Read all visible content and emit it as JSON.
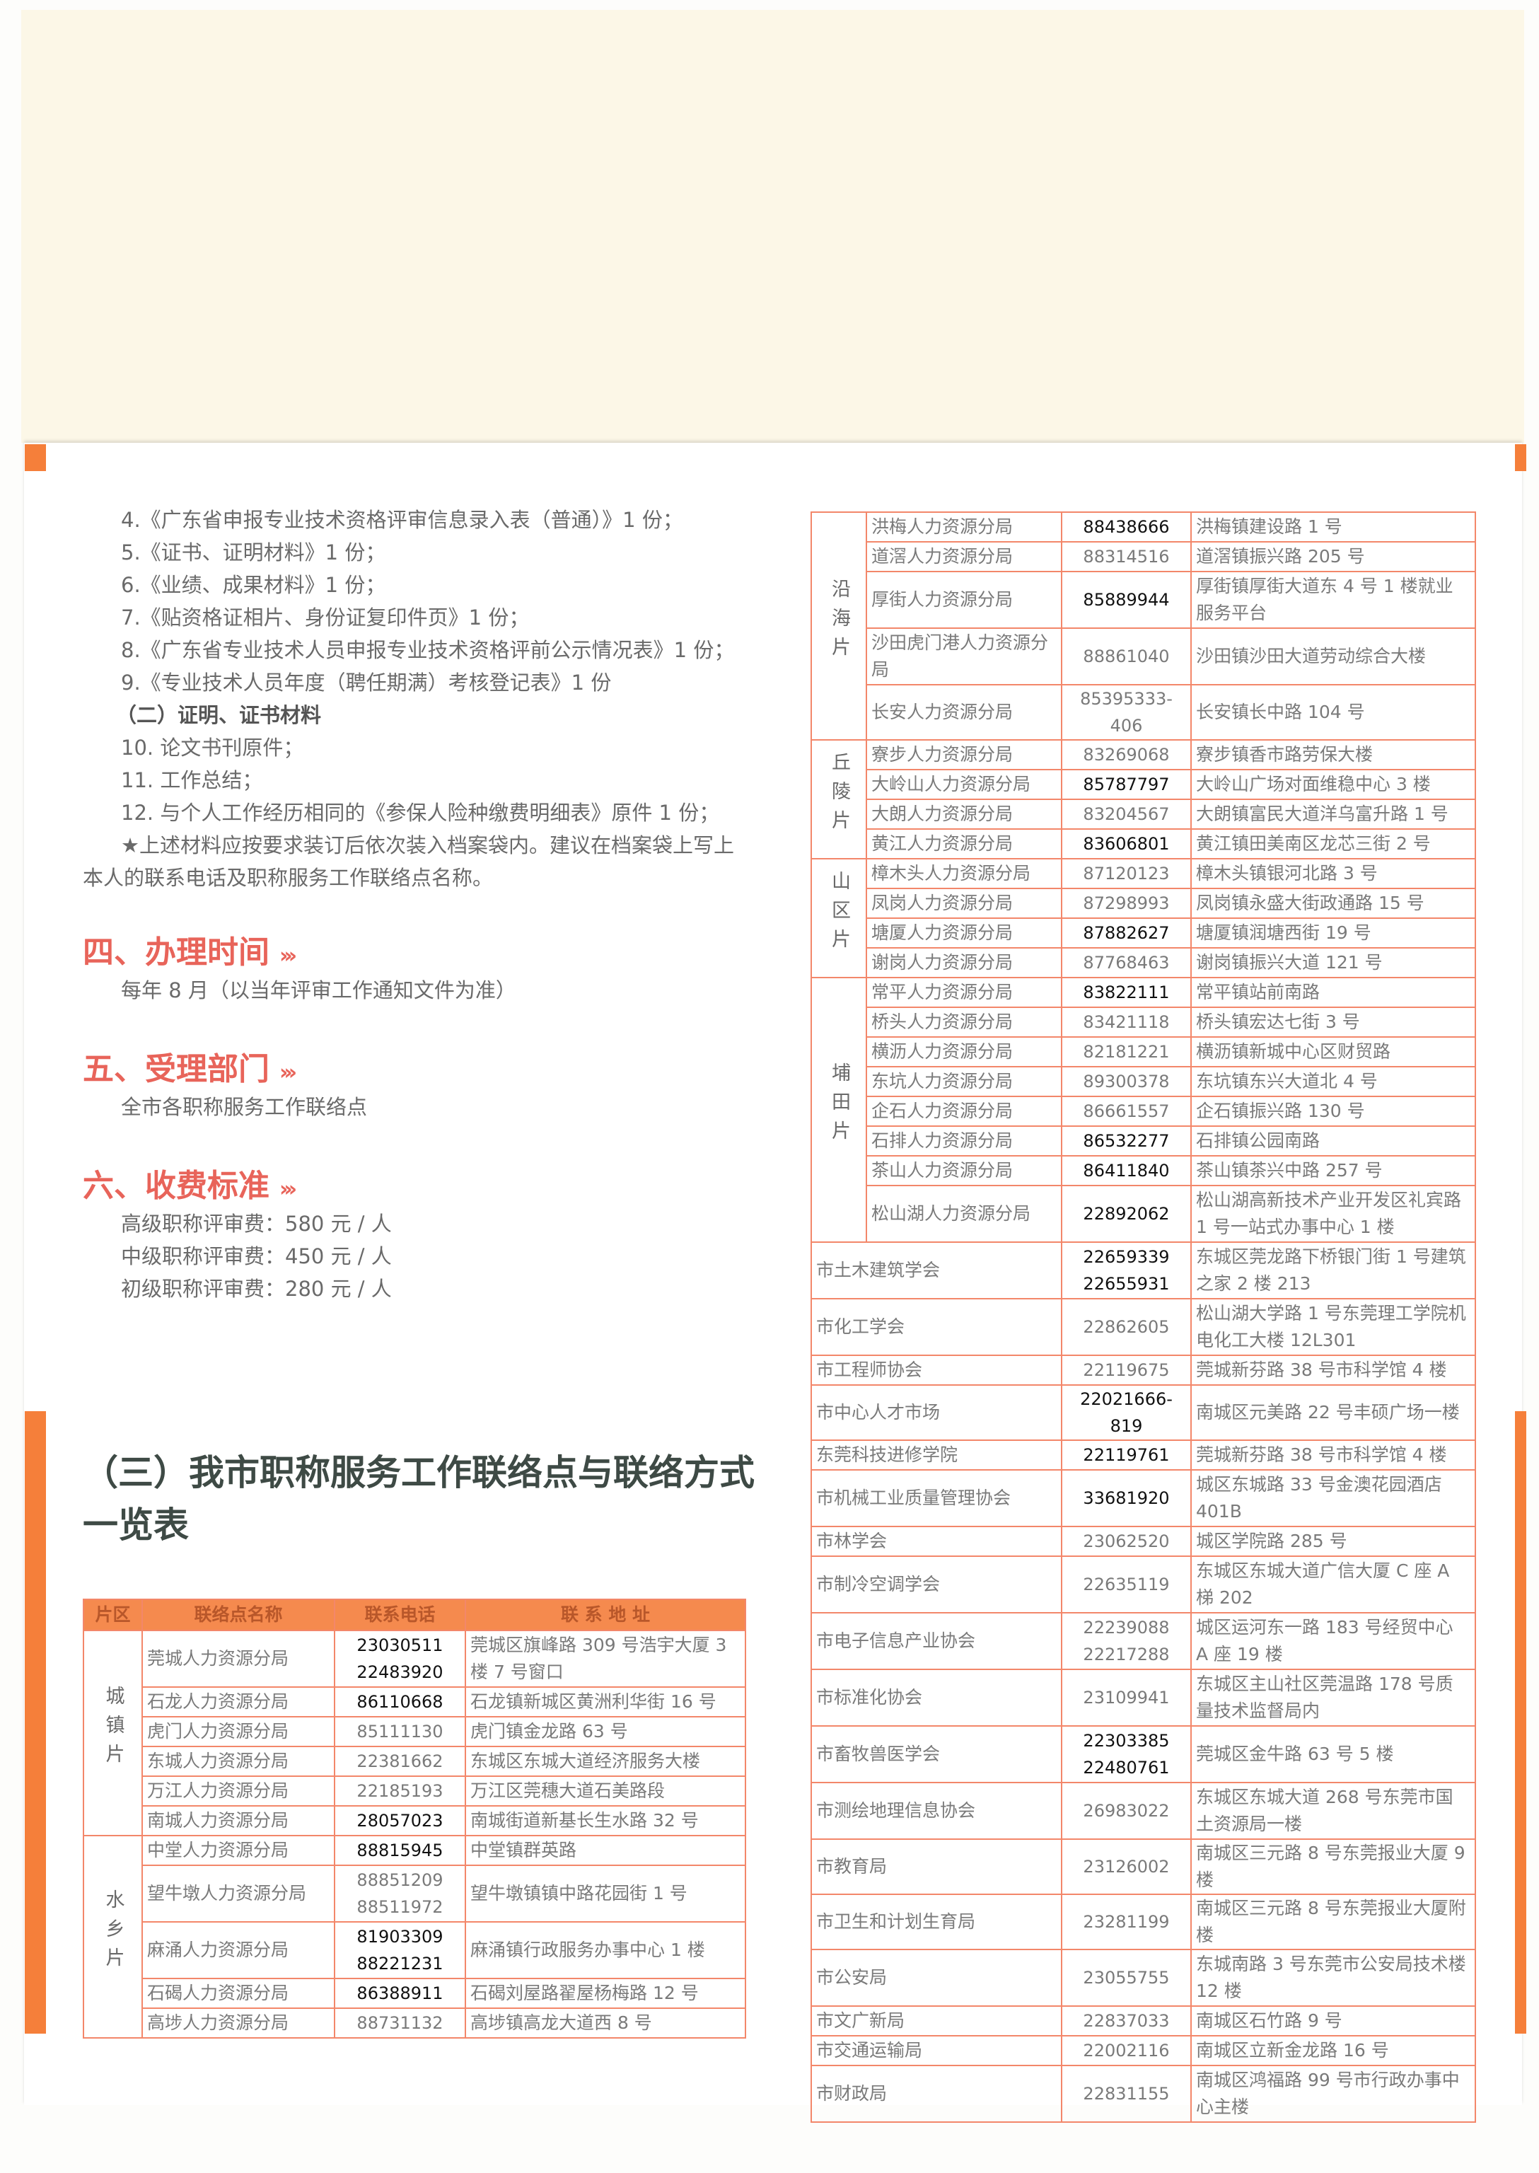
{
  "colors": {
    "accent": "#f57f3a",
    "heading": "#e8645a",
    "title": "#3e4a45",
    "table_border": "#f3876a",
    "table_header": "#f58a4e"
  },
  "materials": [
    "4.《广东省申报专业技术资格评审信息录入表（普通）》1 份；",
    "5.《证书、证明材料》1 份；",
    "6.《业绩、成果材料》1 份；",
    "7.《贴资格证相片、身份证复印件页》1 份；",
    "8.《广东省专业技术人员申报专业技术资格评前公示情况表》1 份；",
    "9.《专业技术人员年度（聘任期满）考核登记表》1 份"
  ],
  "sub_heading": "（二）证明、证书材料",
  "materials2": [
    "10. 论文书刊原件；",
    "11. 工作总结；",
    "12. 与个人工作经历相同的《参保人险种缴费明细表》原件 1 份；"
  ],
  "note_line1": "★上述材料应按要求装订后依次装入档案袋内。建议在档案袋上写上",
  "note_line2": "本人的联系电话及职称服务工作联络点名称。",
  "sections": [
    {
      "title": "四、办理时间",
      "arrows": "›››",
      "lines": [
        "每年 8 月（以当年评审工作通知文件为准）"
      ]
    },
    {
      "title": "五、受理部门",
      "arrows": "›››",
      "lines": [
        "全市各职称服务工作联络点"
      ]
    },
    {
      "title": "六、收费标准",
      "arrows": "›››",
      "lines": [
        "高级职称评审费：580 元 / 人",
        "中级职称评审费：450 元 / 人",
        "初级职称评审费：280 元 / 人"
      ]
    }
  ],
  "table_title": "（三）我市职称服务工作联络点与联络方式一览表",
  "table_headers": [
    "片区",
    "联络点名称",
    "联系电话",
    "联 系 地 址"
  ],
  "left_table": [
    {
      "zone": "城镇片",
      "rows": [
        {
          "name": "莞城人力资源分局",
          "phones": [
            "23030511",
            "22483920"
          ],
          "bold": true,
          "address": "莞城区旗峰路 309 号浩宇大厦 3 楼 7 号窗口"
        },
        {
          "name": "石龙人力资源分局",
          "phones": [
            "86110668"
          ],
          "bold": true,
          "address": "石龙镇新城区黄洲利华街 16 号"
        },
        {
          "name": "虎门人力资源分局",
          "phones": [
            "85111130"
          ],
          "bold": false,
          "address": "虎门镇金龙路 63 号"
        },
        {
          "name": "东城人力资源分局",
          "phones": [
            "22381662"
          ],
          "bold": false,
          "address": "东城区东城大道经济服务大楼"
        },
        {
          "name": "万江人力资源分局",
          "phones": [
            "22185193"
          ],
          "bold": false,
          "address": "万江区莞穗大道石美路段"
        },
        {
          "name": "南城人力资源分局",
          "phones": [
            "28057023"
          ],
          "bold": true,
          "address": "南城街道新基长生水路 32 号"
        }
      ]
    },
    {
      "zone": "水乡片",
      "rows": [
        {
          "name": "中堂人力资源分局",
          "phones": [
            "88815945"
          ],
          "bold": true,
          "address": "中堂镇群英路"
        },
        {
          "name": "望牛墩人力资源分局",
          "phones": [
            "88851209",
            "88511972"
          ],
          "bold": false,
          "address": "望牛墩镇镇中路花园街 1 号"
        },
        {
          "name": "麻涌人力资源分局",
          "phones": [
            "81903309",
            "88221231"
          ],
          "bold": true,
          "address": "麻涌镇行政服务办事中心 1 楼"
        },
        {
          "name": "石碣人力资源分局",
          "phones": [
            "86388911"
          ],
          "bold": true,
          "address": "石碣刘屋路翟屋杨梅路 12 号"
        },
        {
          "name": "高埗人力资源分局",
          "phones": [
            "88731132"
          ],
          "bold": false,
          "address": "高埗镇高龙大道西 8 号"
        }
      ]
    }
  ],
  "right_table": [
    {
      "zone": "沿海片",
      "rows": [
        {
          "name": "洪梅人力资源分局",
          "phones": [
            "88438666"
          ],
          "bold": true,
          "address": "洪梅镇建设路 1 号"
        },
        {
          "name": "道滘人力资源分局",
          "phones": [
            "88314516"
          ],
          "bold": false,
          "address": "道滘镇振兴路 205 号"
        },
        {
          "name": "厚街人力资源分局",
          "phones": [
            "85889944"
          ],
          "bold": true,
          "address": "厚街镇厚街大道东 4 号 1 楼就业服务平台",
          "tall": true
        },
        {
          "name": "沙田虎门港人力资源分局",
          "phones": [
            "88861040"
          ],
          "bold": false,
          "address": "沙田镇沙田大道劳动综合大楼",
          "tall": true
        },
        {
          "name": "长安人力资源分局",
          "phones": [
            "85395333-406"
          ],
          "bold": false,
          "address": "长安镇长中路 104 号"
        }
      ]
    },
    {
      "zone": "丘陵片",
      "rows": [
        {
          "name": "寮步人力资源分局",
          "phones": [
            "83269068"
          ],
          "bold": false,
          "address": "寮步镇香市路劳保大楼"
        },
        {
          "name": "大岭山人力资源分局",
          "phones": [
            "85787797"
          ],
          "bold": true,
          "address": "大岭山广场对面维稳中心 3 楼"
        },
        {
          "name": "大朗人力资源分局",
          "phones": [
            "83204567"
          ],
          "bold": false,
          "address": "大朗镇富民大道洋乌富升路 1 号"
        },
        {
          "name": "黄江人力资源分局",
          "phones": [
            "83606801"
          ],
          "bold": true,
          "address": "黄江镇田美南区龙芯三街 2 号"
        }
      ]
    },
    {
      "zone": "山区片",
      "rows": [
        {
          "name": "樟木头人力资源分局",
          "phones": [
            "87120123"
          ],
          "bold": false,
          "address": "樟木头镇银河北路 3 号"
        },
        {
          "name": "凤岗人力资源分局",
          "phones": [
            "87298993"
          ],
          "bold": false,
          "address": "凤岗镇永盛大街政通路 15 号"
        },
        {
          "name": "塘厦人力资源分局",
          "phones": [
            "87882627"
          ],
          "bold": true,
          "address": "塘厦镇润塘西街 19 号"
        },
        {
          "name": "谢岗人力资源分局",
          "phones": [
            "87768463"
          ],
          "bold": false,
          "address": "谢岗镇振兴大道 121 号"
        }
      ]
    },
    {
      "zone": "埔田片",
      "rows": [
        {
          "name": "常平人力资源分局",
          "phones": [
            "83822111"
          ],
          "bold": true,
          "address": "常平镇站前南路"
        },
        {
          "name": "桥头人力资源分局",
          "phones": [
            "83421118"
          ],
          "bold": false,
          "address": "桥头镇宏达七街 3 号"
        },
        {
          "name": "横沥人力资源分局",
          "phones": [
            "82181221"
          ],
          "bold": false,
          "address": "横沥镇新城中心区财贸路"
        },
        {
          "name": "东坑人力资源分局",
          "phones": [
            "89300378"
          ],
          "bold": false,
          "address": "东坑镇东兴大道北 4 号"
        },
        {
          "name": "企石人力资源分局",
          "phones": [
            "86661557"
          ],
          "bold": false,
          "address": "企石镇振兴路 130 号"
        },
        {
          "name": "石排人力资源分局",
          "phones": [
            "86532277"
          ],
          "bold": true,
          "address": "石排镇公园南路"
        },
        {
          "name": "茶山人力资源分局",
          "phones": [
            "86411840"
          ],
          "bold": true,
          "address": "茶山镇茶兴中路 257 号"
        },
        {
          "name": "松山湖人力资源分局",
          "phones": [
            "22892062"
          ],
          "bold": true,
          "address": "松山湖高新技术产业开发区礼宾路 1 号一站式办事中心 1 楼",
          "tall": true
        }
      ]
    },
    {
      "zone": "",
      "rows": [
        {
          "name": "市土木建筑学会",
          "phones": [
            "22659339",
            "22655931"
          ],
          "bold": true,
          "address": "东城区莞龙路下桥银门街 1 号建筑之家 2 楼 213"
        },
        {
          "name": "市化工学会",
          "phones": [
            "22862605"
          ],
          "bold": false,
          "address": "松山湖大学路 1 号东莞理工学院机电化工大楼 12L301",
          "tall": true
        },
        {
          "name": "市工程师协会",
          "phones": [
            "22119675"
          ],
          "bold": false,
          "address": "莞城新芬路 38 号市科学馆 4 楼"
        },
        {
          "name": "市中心人才市场",
          "phones": [
            "22021666-819"
          ],
          "bold": true,
          "address": "南城区元美路 22 号丰硕广场一楼"
        },
        {
          "name": "东莞科技进修学院",
          "phones": [
            "22119761"
          ],
          "bold": true,
          "address": "莞城新芬路 38 号市科学馆 4 楼"
        },
        {
          "name": "市机械工业质量管理协会",
          "phones": [
            "33681920"
          ],
          "bold": true,
          "address": "城区东城路 33 号金澳花园酒店 401B",
          "tall": true
        },
        {
          "name": "市林学会",
          "phones": [
            "23062520"
          ],
          "bold": false,
          "address": "城区学院路 285 号"
        },
        {
          "name": "市制冷空调学会",
          "phones": [
            "22635119"
          ],
          "bold": false,
          "address": "东城区东城大道广信大厦 C 座 A 梯 202",
          "tall": true
        },
        {
          "name": "市电子信息产业协会",
          "phones": [
            "22239088",
            "22217288"
          ],
          "bold": false,
          "address": "城区运河东一路 183 号经贸中心 A 座 19 楼"
        },
        {
          "name": "市标准化协会",
          "phones": [
            "23109941"
          ],
          "bold": false,
          "address": "东城区主山社区莞温路 178 号质量技术监督局内",
          "tall": true
        },
        {
          "name": "市畜牧兽医学会",
          "phones": [
            "22303385",
            "22480761"
          ],
          "bold": true,
          "address": "莞城区金牛路 63 号 5 楼"
        },
        {
          "name": "市测绘地理信息协会",
          "phones": [
            "26983022"
          ],
          "bold": false,
          "address": "东城区东城大道 268 号东莞市国土资源局一楼",
          "tall": true
        },
        {
          "name": "市教育局",
          "phones": [
            "23126002"
          ],
          "bold": false,
          "address": "南城区三元路 8 号东莞报业大厦 9 楼"
        },
        {
          "name": "市卫生和计划生育局",
          "phones": [
            "23281199"
          ],
          "bold": false,
          "address": "南城区三元路 8 号东莞报业大厦附楼"
        },
        {
          "name": "市公安局",
          "phones": [
            "23055755"
          ],
          "bold": false,
          "address": "东城南路 3 号东莞市公安局技术楼 12 楼",
          "tall": true
        },
        {
          "name": "市文广新局",
          "phones": [
            "22837033"
          ],
          "bold": false,
          "address": "南城区石竹路 9 号"
        },
        {
          "name": "市交通运输局",
          "phones": [
            "22002116"
          ],
          "bold": false,
          "address": "南城区立新金龙路 16 号"
        },
        {
          "name": "市财政局",
          "phones": [
            "22831155"
          ],
          "bold": false,
          "address": "南城区鸿福路 99 号市行政办事中心主楼",
          "tall": true
        }
      ]
    }
  ]
}
